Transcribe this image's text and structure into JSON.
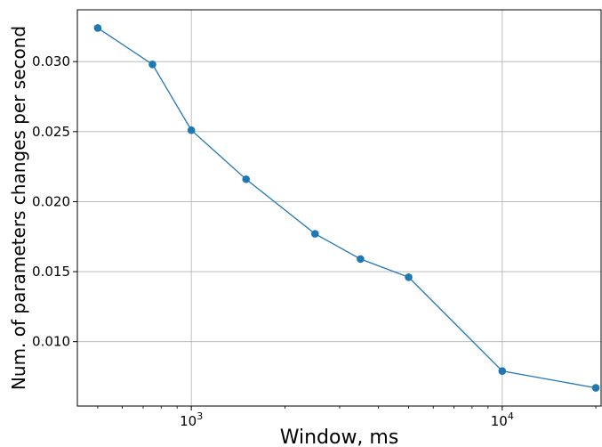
{
  "chart_data": {
    "type": "line",
    "title": "",
    "xlabel": "Window, ms",
    "ylabel": "Num. of parameters changes per second",
    "x_scale": "log",
    "xlim": [
      430,
      20800
    ],
    "ylim": [
      0.0054,
      0.0337
    ],
    "grid": true,
    "color": "#1f77b4",
    "x_ticks": [
      {
        "value": 1000,
        "base": "10",
        "exp": "3"
      },
      {
        "value": 10000,
        "base": "10",
        "exp": "4"
      }
    ],
    "y_ticks": [
      {
        "value": 0.01,
        "label": "0.010"
      },
      {
        "value": 0.015,
        "label": "0.015"
      },
      {
        "value": 0.02,
        "label": "0.020"
      },
      {
        "value": 0.025,
        "label": "0.025"
      },
      {
        "value": 0.03,
        "label": "0.030"
      }
    ],
    "series": [
      {
        "x": [
          500,
          750,
          1000,
          1500,
          2500,
          3500,
          5000,
          10000,
          20000
        ],
        "y": [
          0.0324,
          0.0298,
          0.0251,
          0.0216,
          0.0177,
          0.0159,
          0.0146,
          0.0079,
          0.0067
        ]
      }
    ]
  }
}
